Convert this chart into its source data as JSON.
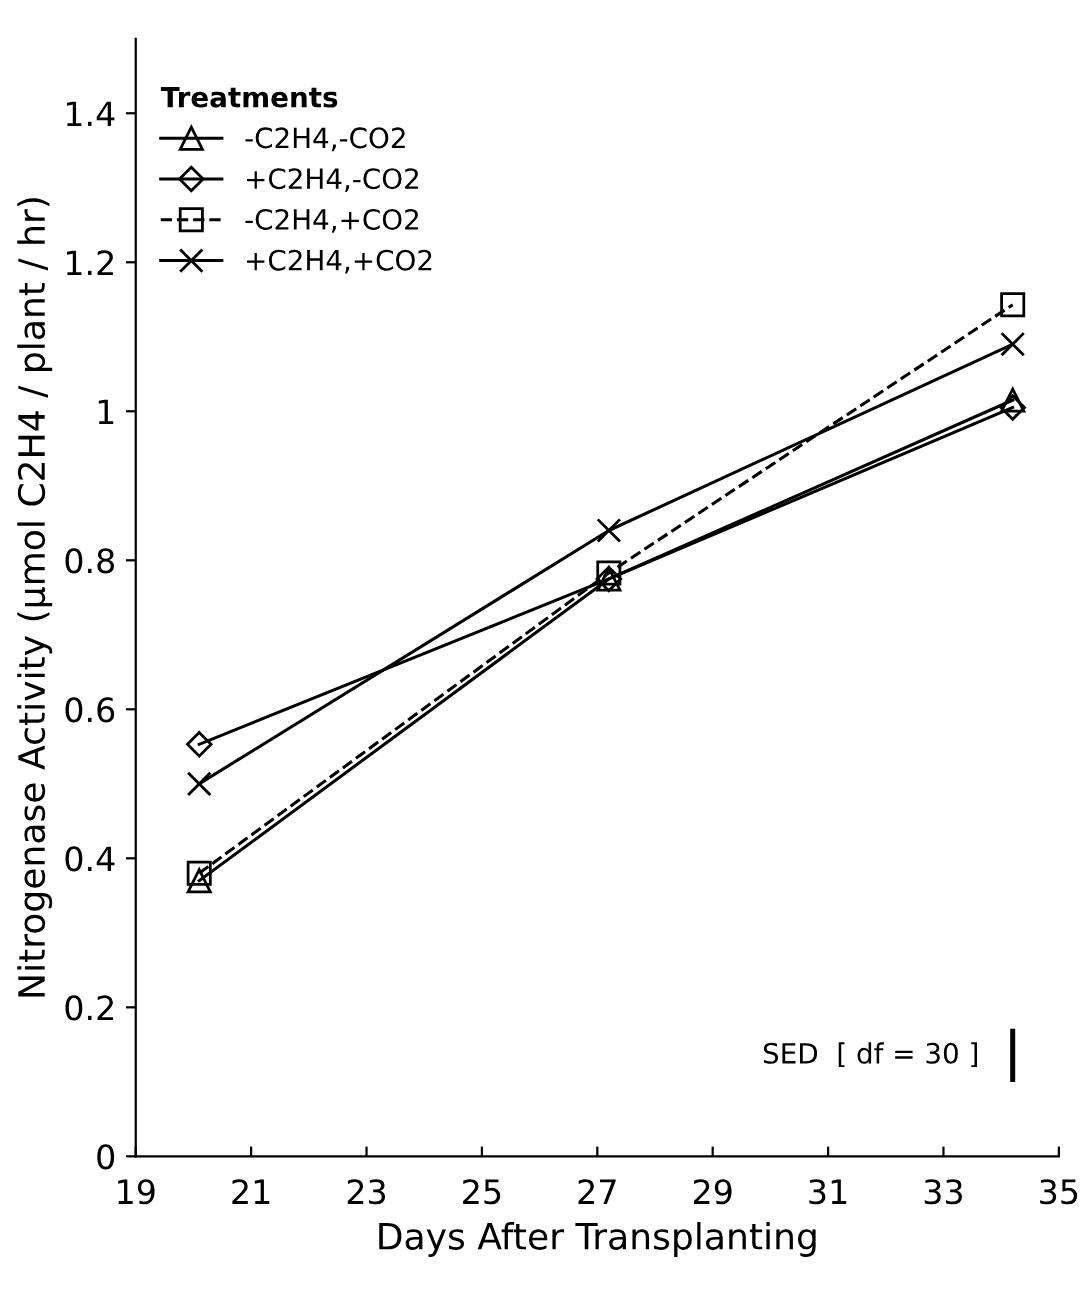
{
  "chart_data": {
    "type": "line",
    "xlabel": "Days After Transplanting",
    "ylabel": "Nitrogenase Activity (µmol C2H4 / plant / hr)",
    "legend_title": "Treatments",
    "x": [
      20.1,
      27.2,
      34.2
    ],
    "xlim": [
      19,
      35
    ],
    "xticks": [
      19,
      21,
      23,
      25,
      27,
      29,
      31,
      33,
      35
    ],
    "ylim": [
      0,
      1.5
    ],
    "yticks": [
      0,
      0.2,
      0.4,
      0.6,
      0.8,
      1,
      1.2,
      1.4
    ],
    "grid": false,
    "legend": "top left",
    "series": [
      {
        "name": "-C2H4,-CO2",
        "color": "#000000",
        "marker": "triangle",
        "line_style": "solid",
        "values": [
          0.37,
          0.775,
          1.015
        ]
      },
      {
        "name": "+C2H4,-CO2",
        "color": "#000000",
        "marker": "diamond",
        "line_style": "solid",
        "values": [
          0.553,
          0.775,
          1.005
        ]
      },
      {
        "name": "-C2H4,+CO2",
        "color": "#000000",
        "marker": "square",
        "line_style": "dashed",
        "values": [
          0.38,
          0.783,
          1.143
        ]
      },
      {
        "name": "+C2H4,+CO2",
        "color": "#000000",
        "marker": "cross",
        "line_style": "solid",
        "values": [
          0.5,
          0.84,
          1.09
        ]
      },
      {
        "type": "line",
        "color": "#000000",
        "marker": "none",
        "line_style": "solid",
        "x": [
          34.2,
          34.2
        ],
        "values": [
          0.103,
          0.168
        ]
      }
    ],
    "annotations": [
      {
        "text": "SED  [ df = 30 ]",
        "x": 34.2,
        "y": 0.135
      }
    ]
  }
}
